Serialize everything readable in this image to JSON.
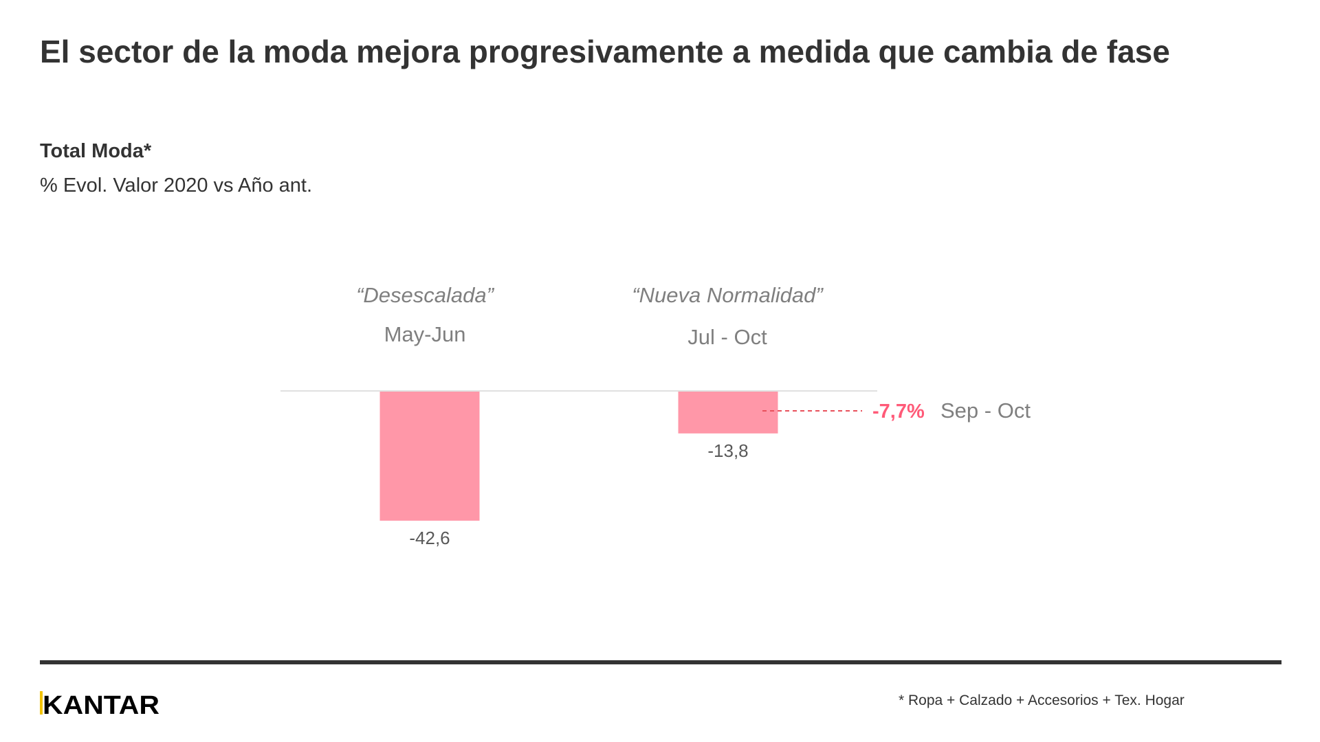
{
  "title": "El sector de la moda mejora progresivamente a medida que cambia de fase",
  "subtitle": {
    "line1": "Total Moda*",
    "line2": "% Evol. Valor  2020 vs Año ant."
  },
  "chart_data": {
    "type": "bar",
    "categories": [
      "May-Jun",
      "Jul - Oct"
    ],
    "phases": [
      "“Desescalada”",
      "“Nueva Normalidad”"
    ],
    "values": [
      -42.6,
      -13.8
    ],
    "data_labels": [
      "-42,6",
      "-13,8"
    ],
    "annotation": {
      "value": -7.7,
      "label": "-7,7%",
      "period": "Sep - Oct"
    },
    "colors": {
      "bar": "#ff97a8",
      "annotation": "#ff5a78",
      "baseline": "#e0e0e0"
    },
    "grid": false
  },
  "footer": {
    "logo": "KANTAR",
    "logo_accent": "#f3c300",
    "footnote": "* Ropa +  Calzado + Accesorios +  Tex. Hogar"
  }
}
